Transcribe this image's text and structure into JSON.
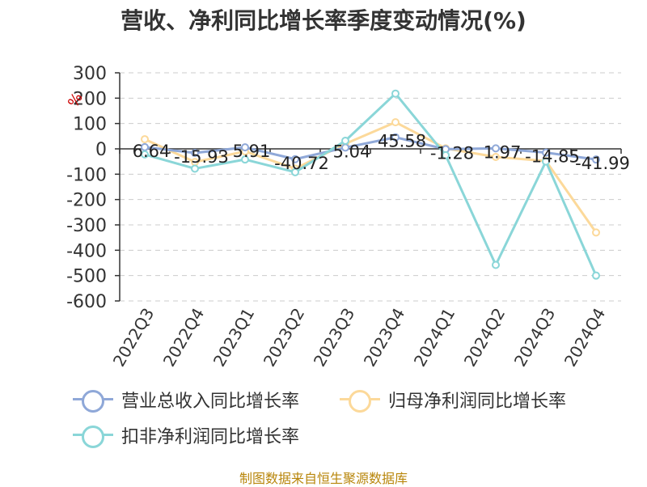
{
  "title": "营收、净利同比增长率季度变动情况(%)",
  "footer": "制图数据来自恒生聚源数据库",
  "chart_data": {
    "type": "line",
    "title": "营收、净利同比增长率季度变动情况(%)",
    "unit": "%",
    "categories": [
      "2022Q3",
      "2022Q4",
      "2023Q1",
      "2023Q2",
      "2023Q3",
      "2023Q4",
      "2024Q1",
      "2024Q2",
      "2024Q3",
      "2024Q4"
    ],
    "ylim": [
      -600,
      300
    ],
    "yticks": [
      300,
      200,
      100,
      0,
      -100,
      -200,
      -300,
      -400,
      -500,
      -600
    ],
    "grid": true,
    "legend_position": "bottom",
    "series": [
      {
        "name": "营业总收入同比增长率",
        "color": "#8fa8d8",
        "values": [
          6.64,
          -15.93,
          5.91,
          -40.72,
          5.04,
          45.58,
          -1.28,
          1.97,
          -14.85,
          -41.99
        ],
        "labels": [
          "6.64",
          "-15.93",
          "5.91",
          "-40.72",
          "5.04",
          "45.58",
          "-1.28",
          "1.97",
          "-14.85",
          "-41.99"
        ]
      },
      {
        "name": "归母净利润同比增长率",
        "color": "#fcd99a",
        "values": [
          38,
          -52,
          -10,
          -78,
          20,
          105,
          2,
          -32,
          -48,
          -330
        ]
      },
      {
        "name": "扣非净利润同比增长率",
        "color": "#8ad6d8",
        "values": [
          -22,
          -78,
          -42,
          -92,
          32,
          218,
          -25,
          -458,
          -50,
          -500
        ]
      }
    ]
  }
}
